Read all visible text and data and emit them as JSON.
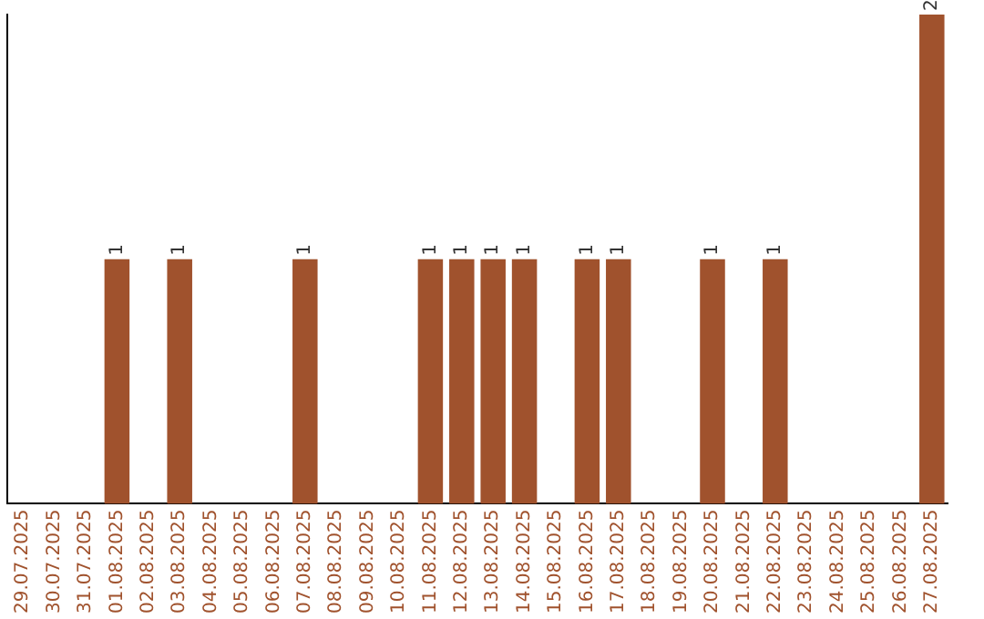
{
  "chart_data": {
    "type": "bar",
    "categories": [
      "29.07.2025",
      "30.07.2025",
      "31.07.2025",
      "01.08.2025",
      "02.08.2025",
      "03.08.2025",
      "04.08.2025",
      "05.08.2025",
      "06.08.2025",
      "07.08.2025",
      "08.08.2025",
      "09.08.2025",
      "10.08.2025",
      "11.08.2025",
      "12.08.2025",
      "13.08.2025",
      "14.08.2025",
      "15.08.2025",
      "16.08.2025",
      "17.08.2025",
      "18.08.2025",
      "19.08.2025",
      "20.08.2025",
      "21.08.2025",
      "22.08.2025",
      "23.08.2025",
      "24.08.2025",
      "25.08.2025",
      "26.08.2025",
      "27.08.2025"
    ],
    "values": [
      0,
      0,
      0,
      1,
      0,
      1,
      0,
      0,
      0,
      1,
      0,
      0,
      0,
      1,
      1,
      1,
      1,
      0,
      1,
      1,
      0,
      0,
      1,
      0,
      1,
      0,
      0,
      0,
      0,
      2
    ],
    "value_labels": [
      null,
      null,
      null,
      "1",
      null,
      "1",
      null,
      null,
      null,
      "1",
      null,
      null,
      null,
      "1",
      "1",
      "1",
      "1",
      null,
      "1",
      "1",
      null,
      null,
      "1",
      null,
      "1",
      null,
      null,
      null,
      null,
      "2"
    ],
    "color": "#a0522d",
    "tick_labels": "x",
    "grid": false,
    "legend": false
  }
}
